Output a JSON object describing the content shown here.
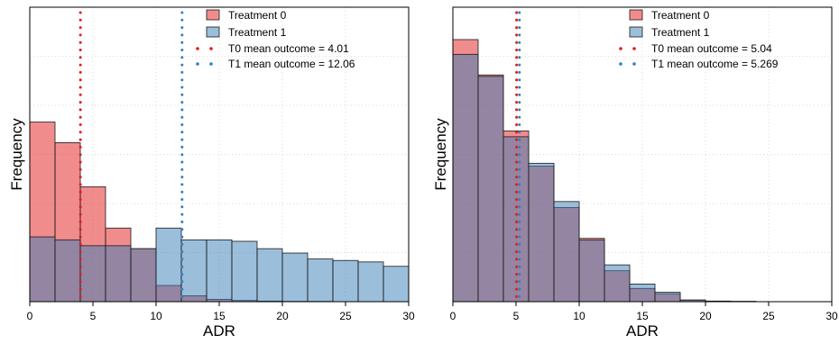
{
  "colors": {
    "treatment0": "#e41a1c",
    "treatment1": "#377eb8",
    "grid": "#d9d9d9",
    "axis": "#000000"
  },
  "chart_data": [
    {
      "type": "bar",
      "subtype": "overlaid-histogram",
      "title": "",
      "xlabel": "ADR",
      "ylabel": "Frequency",
      "xlim": [
        0,
        30
      ],
      "ylim": [
        0,
        1.0
      ],
      "xticks": [
        0,
        5,
        10,
        15,
        20,
        25,
        30
      ],
      "grid": true,
      "legend_position": "top-right",
      "bin_edges": [
        0,
        2,
        4,
        6,
        8,
        10,
        12,
        14,
        16,
        18,
        20,
        22,
        24,
        26,
        28,
        30
      ],
      "series": [
        {
          "name": "Treatment 0",
          "values": [
            0.61,
            0.54,
            0.39,
            0.25,
            0.18,
            0.055,
            0.02,
            0.008,
            0.004,
            0.002,
            0.001,
            0.001,
            0.0,
            0.0,
            0.0
          ]
        },
        {
          "name": "Treatment 1",
          "values": [
            0.22,
            0.21,
            0.19,
            0.19,
            0.18,
            0.25,
            0.21,
            0.21,
            0.205,
            0.18,
            0.165,
            0.145,
            0.14,
            0.135,
            0.12
          ]
        }
      ],
      "mean_lines": [
        {
          "label": "T0 mean outcome = 4.01",
          "x": 4.01,
          "series": 0
        },
        {
          "label": "T1 mean outcome = 12.06",
          "x": 12.06,
          "series": 1
        }
      ]
    },
    {
      "type": "bar",
      "subtype": "overlaid-histogram",
      "title": "",
      "xlabel": "ADR",
      "ylabel": "Frequency",
      "xlim": [
        0,
        30
      ],
      "ylim": [
        0,
        1.0
      ],
      "xticks": [
        0,
        5,
        10,
        15,
        20,
        25,
        30
      ],
      "grid": true,
      "legend_position": "top-right",
      "bin_edges": [
        0,
        2,
        4,
        6,
        8,
        10,
        12,
        14,
        16,
        18,
        20,
        22,
        24,
        26,
        28,
        30
      ],
      "series": [
        {
          "name": "Treatment 0",
          "values": [
            0.89,
            0.77,
            0.58,
            0.46,
            0.32,
            0.215,
            0.105,
            0.045,
            0.027,
            0.005,
            0.002,
            0.001,
            0.0,
            0.0,
            0.0
          ]
        },
        {
          "name": "Treatment 1",
          "values": [
            0.84,
            0.765,
            0.56,
            0.47,
            0.34,
            0.21,
            0.125,
            0.06,
            0.032,
            0.006,
            0.002,
            0.001,
            0.0,
            0.0,
            0.0
          ]
        }
      ],
      "mean_lines": [
        {
          "label": "T0 mean outcome = 5.04",
          "x": 5.04,
          "series": 0
        },
        {
          "label": "T1 mean outcome = 5.269",
          "x": 5.269,
          "series": 1
        }
      ]
    }
  ]
}
